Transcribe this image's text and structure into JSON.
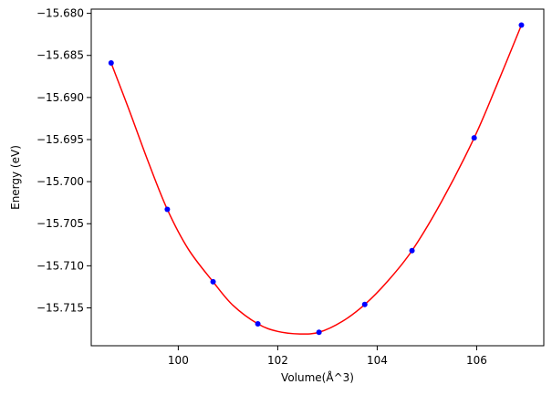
{
  "chart_data": {
    "type": "scatter",
    "title": "",
    "xlabel": "Volume(Å^3)",
    "ylabel": "Energy (eV)",
    "xlim": [
      98.25,
      107.35
    ],
    "ylim": [
      -15.7195,
      -15.6795
    ],
    "grid": false,
    "legend": "none",
    "x_ticks": [
      {
        "value": 100,
        "label": "100"
      },
      {
        "value": 102,
        "label": "102"
      },
      {
        "value": 104,
        "label": "104"
      },
      {
        "value": 106,
        "label": "106"
      }
    ],
    "y_ticks": [
      {
        "value": -15.68,
        "label": "−15.680"
      },
      {
        "value": -15.685,
        "label": "−15.685"
      },
      {
        "value": -15.69,
        "label": "−15.690"
      },
      {
        "value": -15.695,
        "label": "−15.695"
      },
      {
        "value": -15.7,
        "label": "−15.700"
      },
      {
        "value": -15.705,
        "label": "−15.705"
      },
      {
        "value": -15.71,
        "label": "−15.710"
      },
      {
        "value": -15.715,
        "label": "−15.715"
      }
    ],
    "series": [
      {
        "kind": "points",
        "color": "#0000ff",
        "x": [
          98.65,
          99.78,
          100.7,
          101.6,
          102.83,
          103.75,
          104.7,
          105.95,
          106.9
        ],
        "y": [
          -15.6859,
          -15.7033,
          -15.7119,
          -15.7169,
          -15.7179,
          -15.7146,
          -15.7082,
          -15.6948,
          -15.6814
        ]
      },
      {
        "kind": "fit-curve",
        "color": "#ff0000",
        "x": [
          98.65,
          99.0,
          99.4,
          99.78,
          100.2,
          100.7,
          101.1,
          101.6,
          102.0,
          102.45,
          102.83,
          103.3,
          103.75,
          104.2,
          104.7,
          105.3,
          105.95,
          106.4,
          106.9
        ],
        "y": [
          -15.6859,
          -15.6913,
          -15.6977,
          -15.7033,
          -15.708,
          -15.7119,
          -15.7147,
          -15.7169,
          -15.7178,
          -15.7181,
          -15.7179,
          -15.7166,
          -15.7146,
          -15.7119,
          -15.7082,
          -15.7023,
          -15.6948,
          -15.6886,
          -15.6814
        ]
      }
    ]
  }
}
